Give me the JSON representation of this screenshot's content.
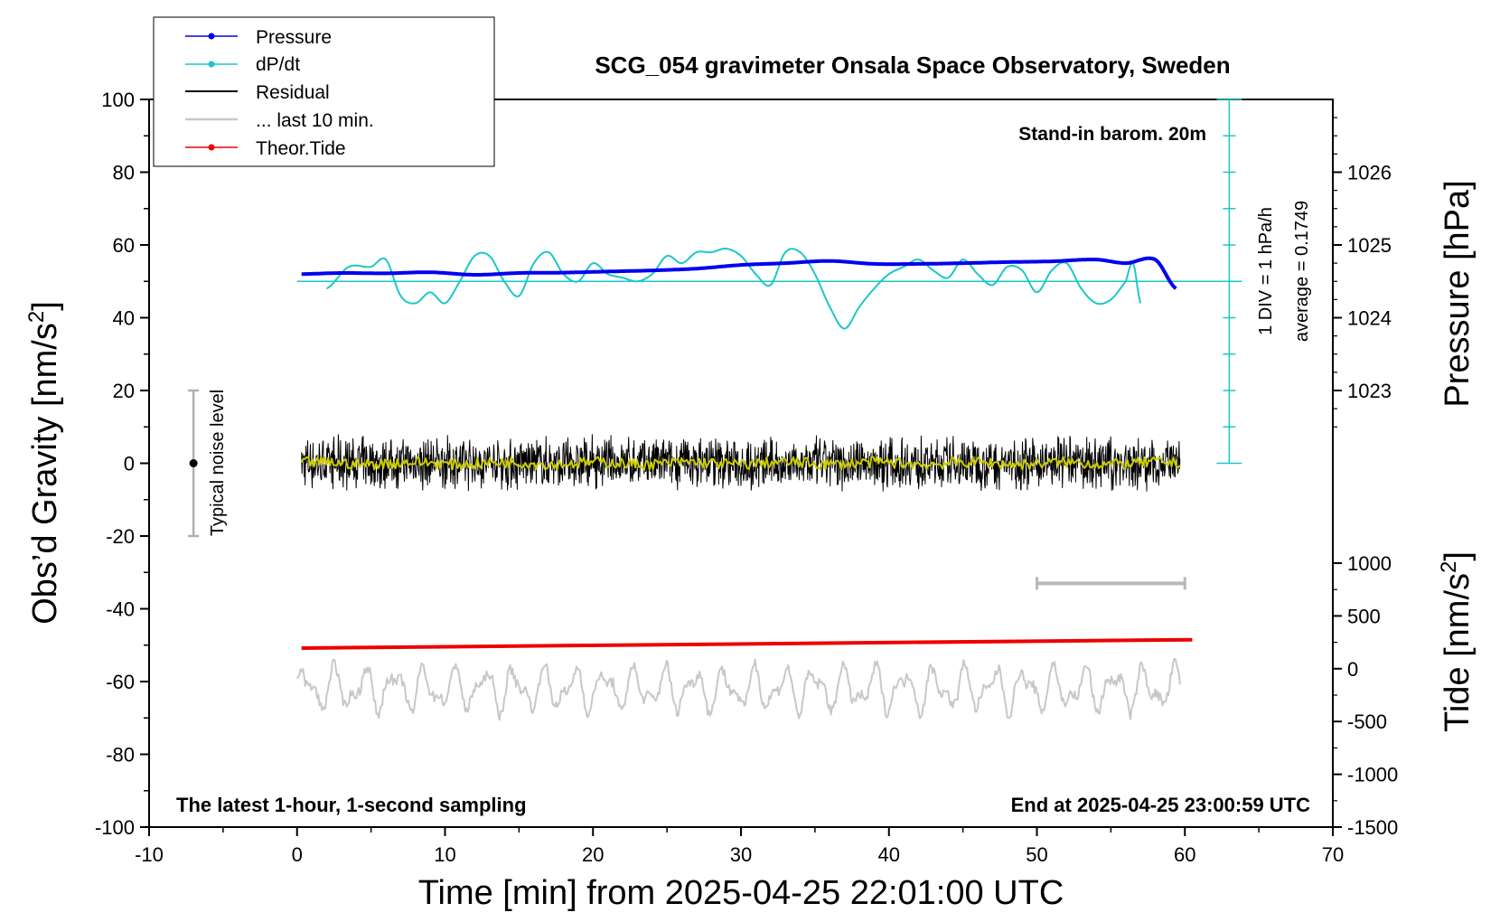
{
  "chart_data": {
    "type": "line",
    "title": "SCG_054 gravimeter Onsala Space Observatory, Sweden",
    "xlabel": "Time [min] from 2025-04-25 22:01:00 UTC",
    "ylabel": "Obs'd Gravity [nm/s²]",
    "y2label": "Pressure [hPa]",
    "y3label": "Tide [nm/s²]",
    "xlim": [
      -10,
      70
    ],
    "ylim": [
      -100,
      100
    ],
    "x_ticks": [
      "-10",
      "0",
      "10",
      "20",
      "30",
      "40",
      "50",
      "60",
      "70"
    ],
    "y_ticks": [
      "-100",
      "-80",
      "-60",
      "-40",
      "-20",
      "0",
      "20",
      "40",
      "60",
      "80",
      "100"
    ],
    "pressure_ticks": [
      "1023",
      "1024",
      "1025",
      "1026"
    ],
    "tide_ticks": [
      "-1500",
      "-1000",
      "-500",
      "0",
      "500",
      "1000"
    ],
    "annotations": {
      "bottom_left": "The latest 1-hour, 1-second sampling",
      "bottom_right": "End at 2025-04-25 23:00:59 UTC",
      "barometer": "Stand-in barom. 20m",
      "dpdt_div": "1 DIV = 1 hPa/h",
      "dpdt_avg": "average = 0.1749",
      "noise": "Typical noise level"
    },
    "legend": [
      "Pressure",
      "dP/dt",
      "Residual",
      "... last 10 min.",
      "Theor.Tide"
    ],
    "series": [
      {
        "name": "Pressure",
        "color": "#0000ee",
        "x": [
          0.3,
          3,
          6,
          9,
          12,
          15,
          18,
          21,
          24,
          27,
          30,
          33,
          36,
          39,
          42,
          45,
          48,
          51,
          54,
          56,
          58,
          59.4
        ],
        "values": [
          52,
          52.3,
          52.2,
          52.5,
          51.8,
          52.3,
          52.4,
          52.7,
          53,
          53.5,
          54.5,
          55,
          55.6,
          54.8,
          54.8,
          55,
          55.3,
          55.5,
          56,
          55,
          56,
          48
        ]
      },
      {
        "name": "dP/dt",
        "color": "#1cc7c7",
        "x": [
          2,
          3.5,
          5,
          6,
          7,
          8,
          9,
          10,
          11,
          12,
          13,
          14,
          15,
          16,
          17,
          18,
          19,
          20,
          21,
          22,
          23,
          24,
          25,
          26,
          27,
          28,
          29,
          30,
          31,
          32,
          33,
          34,
          35,
          36,
          37,
          38,
          39,
          40,
          41,
          42,
          43,
          44,
          45,
          46,
          47,
          48,
          49,
          50,
          51,
          52,
          53,
          54,
          55,
          56,
          56.5,
          57
        ],
        "values": [
          48,
          54,
          54,
          56,
          46,
          44,
          47,
          44,
          50,
          57,
          57,
          50,
          46,
          55,
          58,
          52,
          50,
          55,
          52,
          51,
          50,
          52,
          57,
          55,
          58,
          58,
          59,
          57,
          52,
          49,
          58,
          58,
          52,
          43,
          37,
          43,
          48,
          52,
          54,
          56,
          53,
          51,
          56,
          52,
          49,
          54,
          53,
          47,
          53,
          55,
          48,
          44,
          45,
          50,
          55,
          44
        ]
      },
      {
        "name": "Residual",
        "color": "#000000",
        "x_range": [
          0.3,
          59.7
        ],
        "amplitude": 8
      },
      {
        "name": "Residual (smoothed)",
        "color": "#cccc00",
        "x_range": [
          0.3,
          59.7
        ],
        "amplitude": 1.5
      },
      {
        "name": "Theor.Tide",
        "color": "#ee0000",
        "x": [
          0.3,
          60.5
        ],
        "values": [
          -50.8,
          -48.5
        ]
      },
      {
        "name": "... last 10 min.",
        "color": "#c8c8c8",
        "x_range": [
          0,
          59.7
        ],
        "center": -62,
        "amplitude": 6
      },
      {
        "name": "dP/dt zero line",
        "color": "#1cc7c7",
        "x": [
          0,
          62.7
        ],
        "values": [
          50,
          50
        ]
      }
    ],
    "noise_bar": {
      "x": -7,
      "center": 0,
      "range": [
        -20,
        20
      ]
    },
    "window_bar": {
      "x_range": [
        50,
        60
      ],
      "y": -33
    },
    "dpdt_axis": {
      "x": 63,
      "range": [
        0,
        100
      ]
    }
  }
}
